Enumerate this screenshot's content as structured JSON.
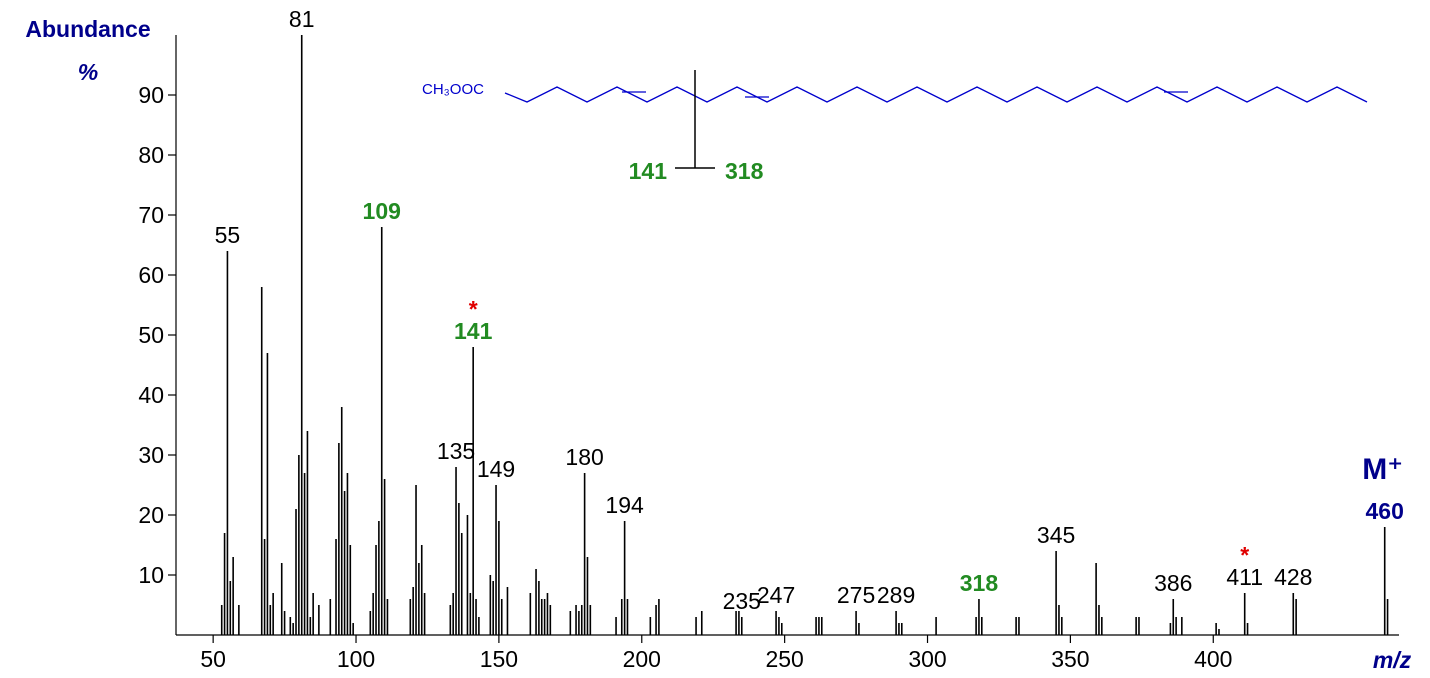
{
  "chart_data": {
    "type": "bar",
    "y_title": "Abundance",
    "y_unit": "%",
    "x_title": "m/z",
    "xlim": [
      37,
      465
    ],
    "ylim": [
      0,
      100
    ],
    "xticks": [
      50,
      100,
      150,
      200,
      250,
      300,
      350,
      400
    ],
    "yticks": [
      10,
      20,
      30,
      40,
      50,
      60,
      70,
      80,
      90
    ],
    "color": "#000000",
    "x": [
      53,
      54,
      55,
      56,
      57,
      59,
      67,
      68,
      69,
      70,
      71,
      74,
      75,
      77,
      78,
      79,
      80,
      81,
      82,
      83,
      84,
      85,
      87,
      91,
      93,
      94,
      95,
      96,
      97,
      98,
      99,
      105,
      106,
      107,
      108,
      109,
      110,
      111,
      119,
      120,
      121,
      122,
      123,
      124,
      133,
      134,
      135,
      136,
      137,
      139,
      140,
      141,
      142,
      143,
      147,
      148,
      149,
      150,
      151,
      153,
      161,
      163,
      164,
      165,
      166,
      167,
      168,
      175,
      177,
      178,
      179,
      180,
      181,
      182,
      191,
      193,
      194,
      195,
      203,
      205,
      206,
      219,
      221,
      233,
      234,
      235,
      247,
      248,
      249,
      261,
      262,
      263,
      275,
      276,
      289,
      290,
      291,
      303,
      317,
      318,
      319,
      331,
      332,
      345,
      346,
      347,
      359,
      360,
      361,
      373,
      374,
      385,
      386,
      387,
      389,
      401,
      402,
      411,
      412,
      428,
      429,
      460,
      461
    ],
    "values": [
      5,
      17,
      64,
      9,
      13,
      5,
      58,
      16,
      47,
      5,
      7,
      12,
      4,
      3,
      2,
      21,
      30,
      100,
      27,
      34,
      3,
      7,
      5,
      6,
      16,
      32,
      38,
      24,
      27,
      15,
      2,
      4,
      7,
      15,
      19,
      68,
      26,
      6,
      6,
      8,
      25,
      12,
      15,
      7,
      5,
      7,
      28,
      22,
      17,
      20,
      7,
      48,
      6,
      3,
      10,
      9,
      25,
      19,
      6,
      8,
      7,
      11,
      9,
      6,
      6,
      7,
      5,
      4,
      5,
      4,
      5,
      27,
      13,
      5,
      3,
      6,
      19,
      6,
      3,
      5,
      6,
      3,
      4,
      4,
      4,
      3,
      4,
      3,
      2,
      3,
      3,
      3,
      4,
      2,
      4,
      2,
      2,
      3,
      3,
      6,
      3,
      3,
      3,
      14,
      5,
      3,
      12,
      5,
      3,
      3,
      3,
      2,
      6,
      3,
      3,
      2,
      1,
      7,
      2,
      7,
      6,
      18,
      6
    ],
    "annotations": [
      {
        "text": "55",
        "x": 55,
        "color": "#000000"
      },
      {
        "text": "81",
        "x": 81,
        "color": "#000000"
      },
      {
        "text": "109",
        "x": 109,
        "color": "#228b22"
      },
      {
        "text": "141",
        "x": 141,
        "color": "#228b22",
        "asterisk": "*"
      },
      {
        "text": "135",
        "x": 135,
        "color": "#000000"
      },
      {
        "text": "149",
        "x": 149,
        "color": "#000000"
      },
      {
        "text": "180",
        "x": 180,
        "color": "#000000"
      },
      {
        "text": "194",
        "x": 194,
        "color": "#000000"
      },
      {
        "text": "235",
        "x": 235,
        "color": "#000000"
      },
      {
        "text": "247",
        "x": 247,
        "color": "#000000"
      },
      {
        "text": "275",
        "x": 275,
        "color": "#000000"
      },
      {
        "text": "289",
        "x": 289,
        "color": "#000000"
      },
      {
        "text": "318",
        "x": 318,
        "color": "#228b22"
      },
      {
        "text": "345",
        "x": 345,
        "color": "#000000"
      },
      {
        "text": "386",
        "x": 386,
        "color": "#000000"
      },
      {
        "text": "411",
        "x": 411,
        "color": "#000000",
        "asterisk": "*"
      },
      {
        "text": "428",
        "x": 428,
        "color": "#000000"
      },
      {
        "text": "460",
        "x": 460,
        "color": "#00008b",
        "ion": "M⁺"
      }
    ],
    "structure": {
      "formula": "CH₃OOC",
      "fragment_left": "141",
      "fragment_right": "318"
    }
  }
}
